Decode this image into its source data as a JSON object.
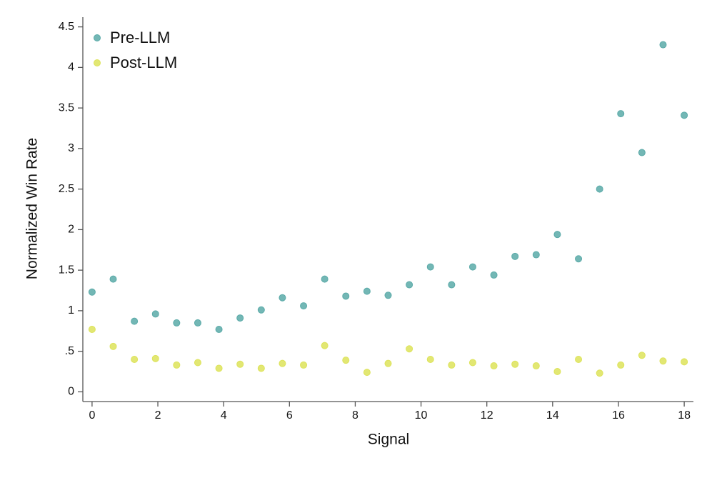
{
  "chart_data": {
    "type": "scatter",
    "x_label": "Signal",
    "y_label": "Normalized Win Rate",
    "x": [
      0,
      0.643,
      1.286,
      1.929,
      2.571,
      3.214,
      3.857,
      4.5,
      5.143,
      5.786,
      6.429,
      7.071,
      7.714,
      8.357,
      9,
      9.643,
      10.286,
      10.929,
      11.571,
      12.214,
      12.857,
      13.5,
      14.143,
      14.786,
      15.429,
      16.071,
      16.714,
      17.357,
      18
    ],
    "series": [
      {
        "name": "Pre-LLM",
        "color": "#5aaaa8",
        "values": [
          1.23,
          1.39,
          0.87,
          0.96,
          0.85,
          0.85,
          0.77,
          0.91,
          1.01,
          1.16,
          1.06,
          1.39,
          1.18,
          1.24,
          1.19,
          1.32,
          1.54,
          1.32,
          1.54,
          1.44,
          1.67,
          1.69,
          1.94,
          1.64,
          2.5,
          3.43,
          2.95,
          4.28,
          3.41
        ]
      },
      {
        "name": "Post-LLM",
        "color": "#dde35a",
        "values": [
          0.77,
          0.56,
          0.4,
          0.41,
          0.33,
          0.36,
          0.29,
          0.34,
          0.29,
          0.35,
          0.33,
          0.57,
          0.39,
          0.24,
          0.35,
          0.53,
          0.4,
          0.33,
          0.36,
          0.32,
          0.34,
          0.32,
          0.25,
          0.4,
          0.23,
          0.33,
          0.45,
          0.38,
          0.37
        ]
      }
    ],
    "xlim": [
      -0.28,
      18.28
    ],
    "ylim": [
      -0.12,
      4.62
    ],
    "xticks": [
      0,
      2,
      4,
      6,
      8,
      10,
      12,
      14,
      16,
      18
    ],
    "yticks": [
      0,
      {
        "value": 0.5,
        "label": ".5"
      },
      1,
      1.5,
      2,
      2.5,
      3,
      3.5,
      4,
      4.5
    ],
    "legend": "upper-left"
  }
}
